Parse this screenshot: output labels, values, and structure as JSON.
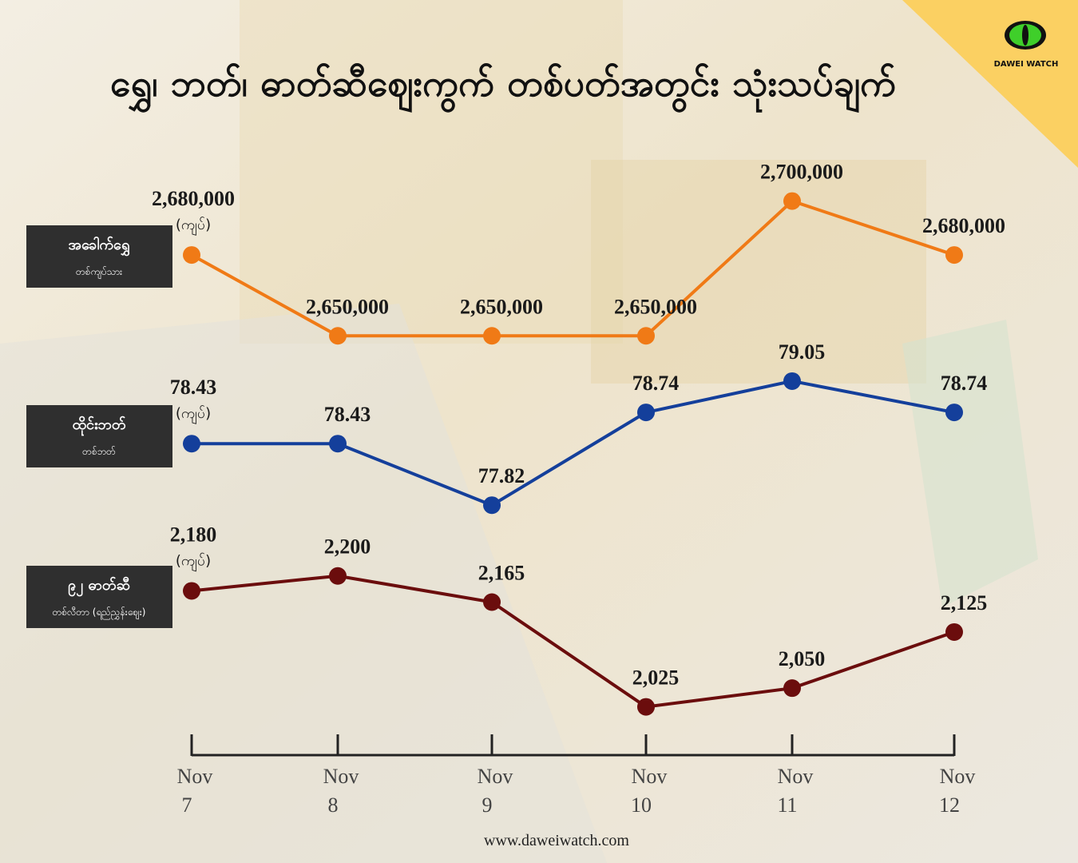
{
  "chart_data": {
    "type": "line",
    "title": "ရွှေ၊ ဘတ်၊ ဓာတ်ဆီဈေးကွက် တစ်ပတ်အတွင်း သုံးသပ်ချက်",
    "logo": "DAWEI WATCH",
    "footer": "www.daweiwatch.com",
    "unit": "(ကျပ်)",
    "categories": [
      "Nov 7",
      "Nov 8",
      "Nov 9",
      "Nov 10",
      "Nov 11",
      "Nov 12"
    ],
    "series": [
      {
        "name": "အခေါက်ရွှေ",
        "subtitle": "တစ်ကျပ်သား",
        "color": "#f07a16",
        "values": [
          2680000,
          2650000,
          2650000,
          2650000,
          2700000,
          2680000
        ],
        "value_labels": [
          "2,680,000",
          "2,650,000",
          "2,650,000",
          "2,650,000",
          "2,700,000",
          "2,680,000"
        ],
        "ylim": [
          2640000,
          2715000
        ]
      },
      {
        "name": "ထိုင်းဘတ်",
        "subtitle": "တစ်ဘတ်",
        "color": "#143f9b",
        "values": [
          78.43,
          78.43,
          77.82,
          78.74,
          79.05,
          78.74
        ],
        "ylim": [
          77.6,
          79.2
        ]
      },
      {
        "name": "၉၂ ဓာတ်ဆီ",
        "subtitle": "တစ်လီတာ (ရည်ညွှန်းဈေး)",
        "color": "#6b0d0d",
        "values": [
          2180,
          2200,
          2165,
          2025,
          2050,
          2125
        ],
        "value_labels": [
          "2,180",
          "2,200",
          "2,165",
          "2,025",
          "2,050",
          "2,125"
        ],
        "ylim": [
          2000,
          2220
        ]
      }
    ]
  }
}
